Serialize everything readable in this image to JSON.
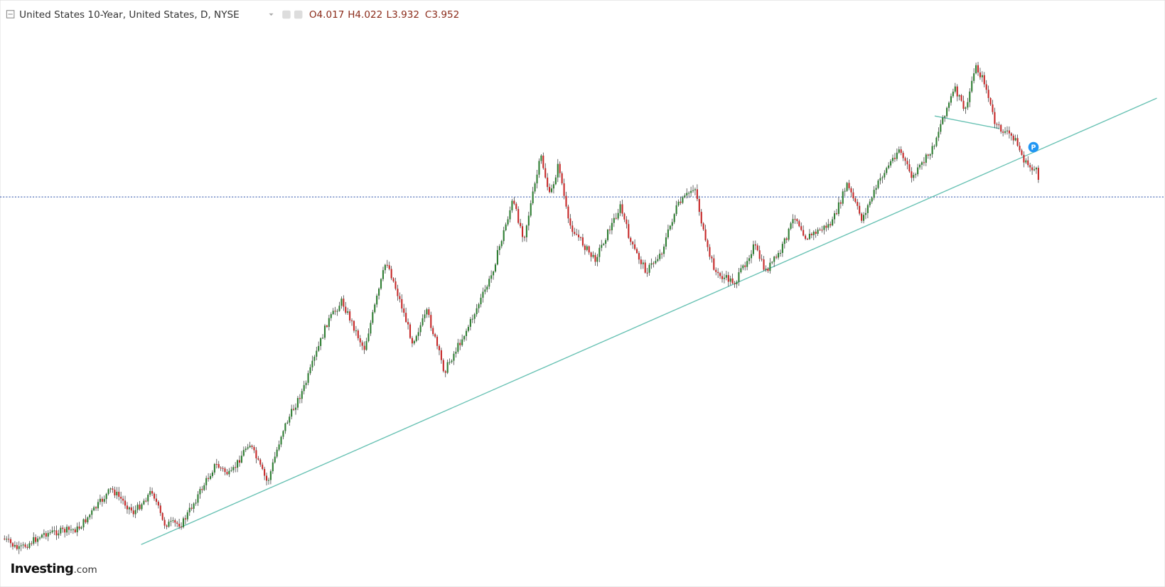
{
  "header": {
    "title": "United States 10-Year, United States, D, NYSE",
    "ohlc": [
      {
        "label": "O",
        "value": 4.017
      },
      {
        "label": "H",
        "value": 4.022
      },
      {
        "label": "L",
        "value": 3.932
      },
      {
        "label": "C",
        "value": 3.952
      }
    ]
  },
  "logo": {
    "brand": "Investing",
    "suffix": ".com"
  },
  "marker": {
    "label": "P"
  }
}
